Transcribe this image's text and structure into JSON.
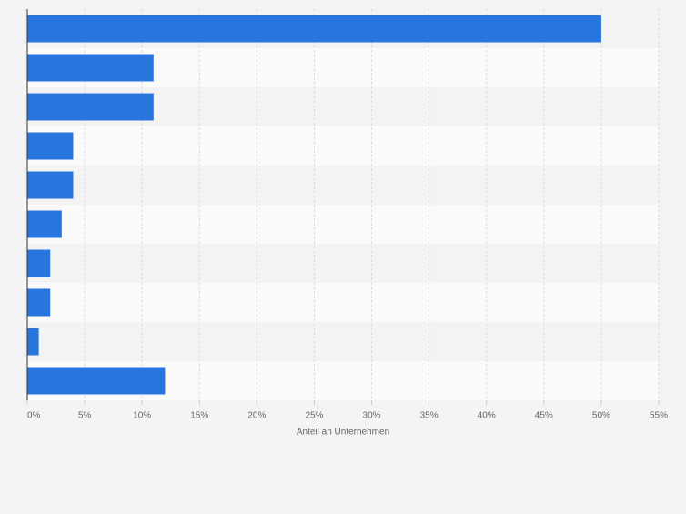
{
  "chart_data": {
    "type": "bar",
    "orientation": "horizontal",
    "categories": [
      null,
      null,
      null,
      null,
      null,
      null,
      null,
      null,
      null,
      null
    ],
    "values": [
      50,
      11,
      11,
      4,
      4,
      3,
      2,
      2,
      1,
      12
    ],
    "color": "#2876dd",
    "xlabel": "Anteil an Unternehmen",
    "xlim": [
      0,
      55
    ],
    "xticks": [
      {
        "value": 0,
        "label": "0%"
      },
      {
        "value": 5,
        "label": "5%"
      },
      {
        "value": 10,
        "label": "10%"
      },
      {
        "value": 15,
        "label": "15%"
      },
      {
        "value": 20,
        "label": "20%"
      },
      {
        "value": 25,
        "label": "25%"
      },
      {
        "value": 30,
        "label": "30%"
      },
      {
        "value": 35,
        "label": "35%"
      },
      {
        "value": 40,
        "label": "40%"
      },
      {
        "value": 45,
        "label": "45%"
      },
      {
        "value": 50,
        "label": "50%"
      },
      {
        "value": 55,
        "label": "55%"
      }
    ],
    "grid": true
  }
}
